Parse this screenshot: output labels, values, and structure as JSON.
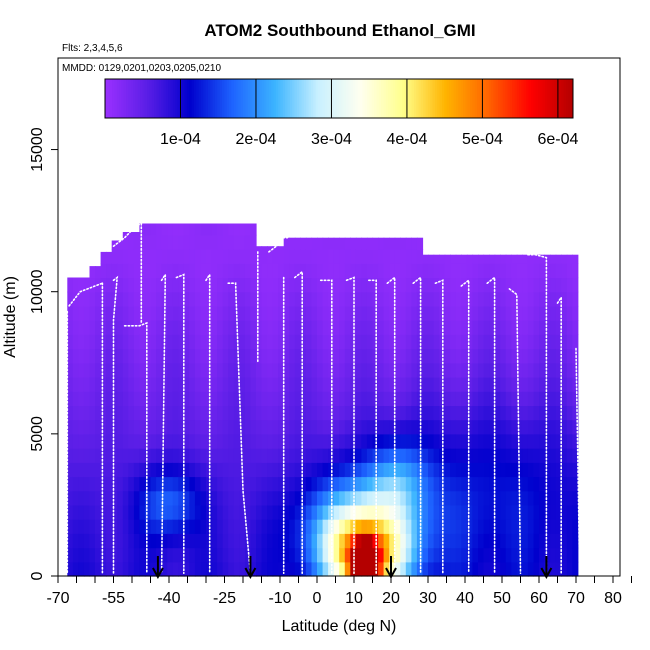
{
  "chart_data": {
    "type": "heatmap",
    "title": "ATOM2 Southbound Ethanol_GMI",
    "flights_label": "Flts: 2,3,4,5,6",
    "dates_label": "MMDD: 0129,0201,0203,0205,0210",
    "xlabel": "Latitude (deg N)",
    "ylabel": "Altitude (m)",
    "xlim": [
      -70,
      85
    ],
    "ylim": [
      0,
      17500
    ],
    "x_ticks": [
      -70,
      -65,
      -60,
      -55,
      -50,
      -45,
      -40,
      -35,
      -30,
      -25,
      -20,
      -15,
      -10,
      -5,
      0,
      5,
      10,
      15,
      20,
      25,
      30,
      35,
      40,
      45,
      50,
      55,
      60,
      65,
      70,
      75,
      80,
      85
    ],
    "x_tick_labels": [
      "-70",
      "-55",
      "-40",
      "-25",
      "-10",
      "0",
      "10",
      "20",
      "30",
      "40",
      "50",
      "60",
      "70",
      "80"
    ],
    "x_tick_label_values": [
      -70,
      -55,
      -40,
      -25,
      -10,
      0,
      10,
      20,
      30,
      40,
      50,
      60,
      70,
      80
    ],
    "y_ticks": [
      0,
      5000,
      10000,
      15000
    ],
    "y_tick_labels": [
      "0",
      "5000",
      "10000",
      "15000"
    ],
    "colorbar": {
      "range": [
        0,
        0.00062
      ],
      "ticks": [
        0.0001,
        0.0002,
        0.0003,
        0.0004,
        0.0005,
        0.0006
      ],
      "tick_labels": [
        "1e-04",
        "2e-04",
        "3e-04",
        "4e-04",
        "5e-04",
        "6e-04"
      ],
      "colors": [
        "#9b30ff",
        "#5a1ee6",
        "#0000cd",
        "#1e64ff",
        "#3cb4ff",
        "#c8f0ff",
        "#fffff0",
        "#ffff8c",
        "#ffb400",
        "#ff6400",
        "#ff0000",
        "#b40000"
      ]
    },
    "arrow_latitudes": [
      -43,
      -18,
      20,
      62
    ],
    "flight_tracks": [
      [
        [
          -67.5,
          9300
        ],
        [
          -67.5,
          100
        ]
      ],
      [
        [
          -67,
          9500
        ],
        [
          -64,
          10000
        ],
        [
          -60,
          10200
        ],
        [
          -58,
          10300
        ]
      ],
      [
        [
          -58,
          10300
        ],
        [
          -58,
          100
        ]
      ],
      [
        [
          -55,
          11600
        ],
        [
          -52,
          11900
        ],
        [
          -49,
          12300
        ],
        [
          -47.5,
          12400
        ]
      ],
      [
        [
          -55,
          10400
        ],
        [
          -54,
          10500
        ],
        [
          -55,
          9000
        ],
        [
          -55,
          100
        ]
      ],
      [
        [
          -52,
          8800
        ],
        [
          -48,
          8800
        ],
        [
          -46,
          8900
        ],
        [
          -46,
          100
        ]
      ],
      [
        [
          -47.5,
          12400
        ],
        [
          -47.5,
          8900
        ]
      ],
      [
        [
          -42,
          10400
        ],
        [
          -41,
          10600
        ],
        [
          -42,
          100
        ]
      ],
      [
        [
          -38,
          10500
        ],
        [
          -36,
          10600
        ],
        [
          -36,
          100
        ]
      ],
      [
        [
          -30,
          10400
        ],
        [
          -29,
          10600
        ],
        [
          -29,
          100
        ]
      ],
      [
        [
          -24,
          10300
        ],
        [
          -22,
          10300
        ],
        [
          -20,
          3000
        ],
        [
          -18,
          100
        ]
      ],
      [
        [
          -16,
          11400
        ],
        [
          -16,
          7500
        ]
      ],
      [
        [
          -13,
          11400
        ],
        [
          -11,
          11600
        ],
        [
          -10,
          11900
        ],
        [
          -8,
          11900
        ]
      ],
      [
        [
          -9,
          10500
        ],
        [
          -9,
          100
        ]
      ],
      [
        [
          -6,
          10500
        ],
        [
          -4,
          10700
        ],
        [
          -4,
          100
        ]
      ],
      [
        [
          1,
          10400
        ],
        [
          4,
          10400
        ],
        [
          4,
          100
        ]
      ],
      [
        [
          8,
          10400
        ],
        [
          10,
          10500
        ],
        [
          10,
          100
        ]
      ],
      [
        [
          14,
          10400
        ],
        [
          16,
          10400
        ],
        [
          16,
          100
        ]
      ],
      [
        [
          19,
          10300
        ],
        [
          21,
          10500
        ],
        [
          21,
          100
        ]
      ],
      [
        [
          26,
          10300
        ],
        [
          28,
          10500
        ],
        [
          28,
          100
        ]
      ],
      [
        [
          32,
          10300
        ],
        [
          34,
          10400
        ],
        [
          34,
          100
        ]
      ],
      [
        [
          39,
          10200
        ],
        [
          41,
          10400
        ],
        [
          41,
          100
        ]
      ],
      [
        [
          46,
          10300
        ],
        [
          48,
          10500
        ],
        [
          48,
          100
        ]
      ],
      [
        [
          52,
          10100
        ],
        [
          54,
          9900
        ],
        [
          55,
          100
        ]
      ],
      [
        [
          57,
          11300
        ],
        [
          59,
          11300
        ],
        [
          62,
          11200
        ],
        [
          62,
          100
        ]
      ],
      [
        [
          65,
          9600
        ],
        [
          66,
          9800
        ],
        [
          66,
          100
        ]
      ],
      [
        [
          70,
          8000
        ],
        [
          71,
          100
        ]
      ]
    ]
  }
}
